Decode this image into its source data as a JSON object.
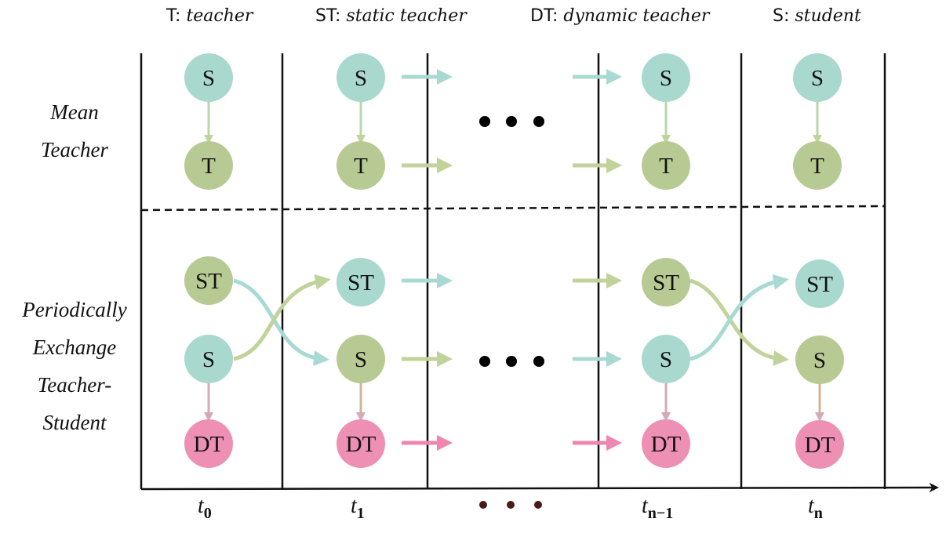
{
  "legend": [
    {
      "abbr": "T:",
      "name": "teacher"
    },
    {
      "abbr": "ST:",
      "name": "static teacher"
    },
    {
      "abbr": "DT:",
      "name": "dynamic teacher"
    },
    {
      "abbr": "S:",
      "name": "student"
    }
  ],
  "rows": {
    "mean_teacher": [
      "Mean",
      "Teacher"
    ],
    "pets": [
      "Periodically",
      "Exchange",
      "Teacher-",
      "Student"
    ]
  },
  "nodes": {
    "student": "S",
    "teacher": "T",
    "static_teacher": "ST",
    "dynamic_teacher": "DT"
  },
  "time_axis": [
    {
      "base": "t",
      "sub": "0"
    },
    {
      "base": "t",
      "sub": "1"
    },
    {
      "base": "t",
      "sub": "n−1"
    },
    {
      "base": "t",
      "sub": "n"
    }
  ],
  "colors": {
    "teal": "#a9d8cf",
    "olive": "#b8ca93",
    "pink": "#ee8fb4",
    "teal_arrow": "#a8dad3",
    "olive_arrow": "#c1d39a",
    "pink_arrow": "#ef86b1"
  }
}
